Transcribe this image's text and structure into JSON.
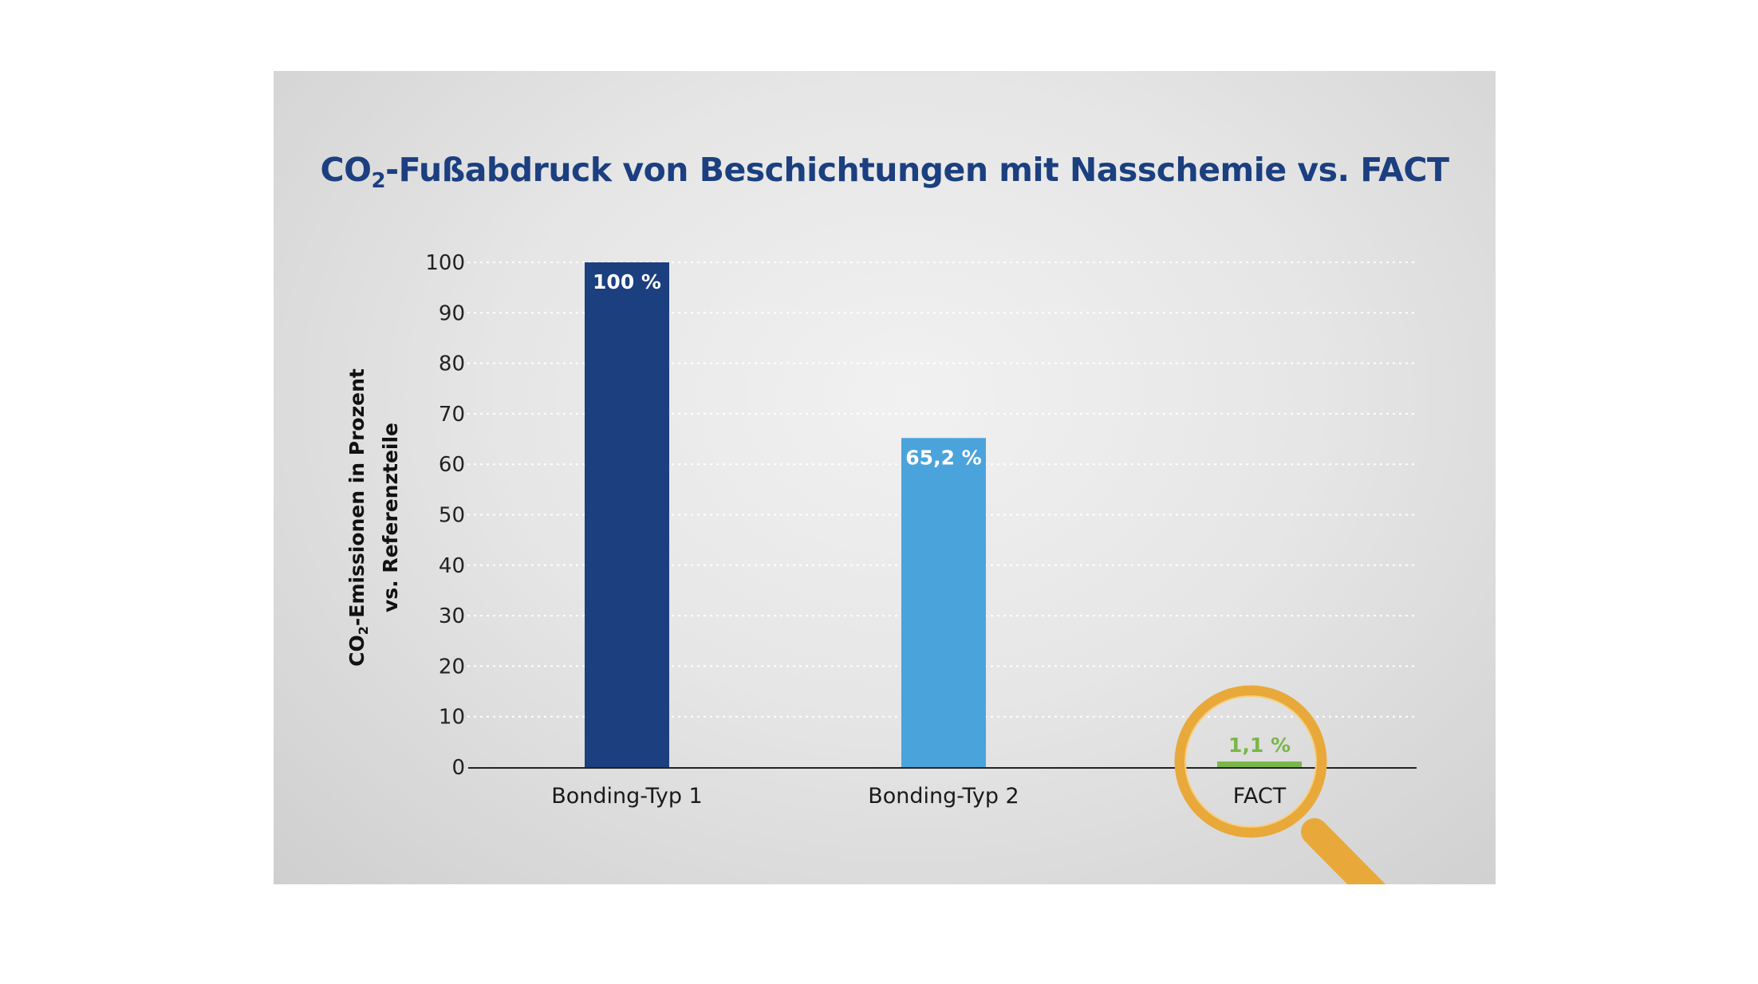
{
  "chart_data": {
    "type": "bar",
    "title_prefix": "CO",
    "title_sub": "2",
    "title_rest": "-Fußabdruck von Beschichtungen mit Nasschemie vs. FACT",
    "ylabel_line1_prefix": "CO",
    "ylabel_line1_sub": "2",
    "ylabel_line1_rest": "-Emissionen in Prozent",
    "ylabel_line2": "vs. Referenzteile",
    "xlabel": "",
    "categories": [
      "Bonding-Typ 1",
      "Bonding-Typ 2",
      "FACT"
    ],
    "values": [
      100,
      65.2,
      1.1
    ],
    "value_labels": [
      "100 %",
      "65,2 %",
      "1,1 %"
    ],
    "ylim": [
      0,
      100
    ],
    "yticks": [
      0,
      10,
      20,
      30,
      40,
      50,
      60,
      70,
      80,
      90,
      100
    ],
    "grid": true,
    "colors": {
      "bar1": "#1b3f7f",
      "bar2": "#4ba3dc",
      "bar3": "#7ab648",
      "magnifier": "#e8a93a",
      "title": "#1b3f7f"
    },
    "annotation": "magnifier-highlight-FACT"
  }
}
